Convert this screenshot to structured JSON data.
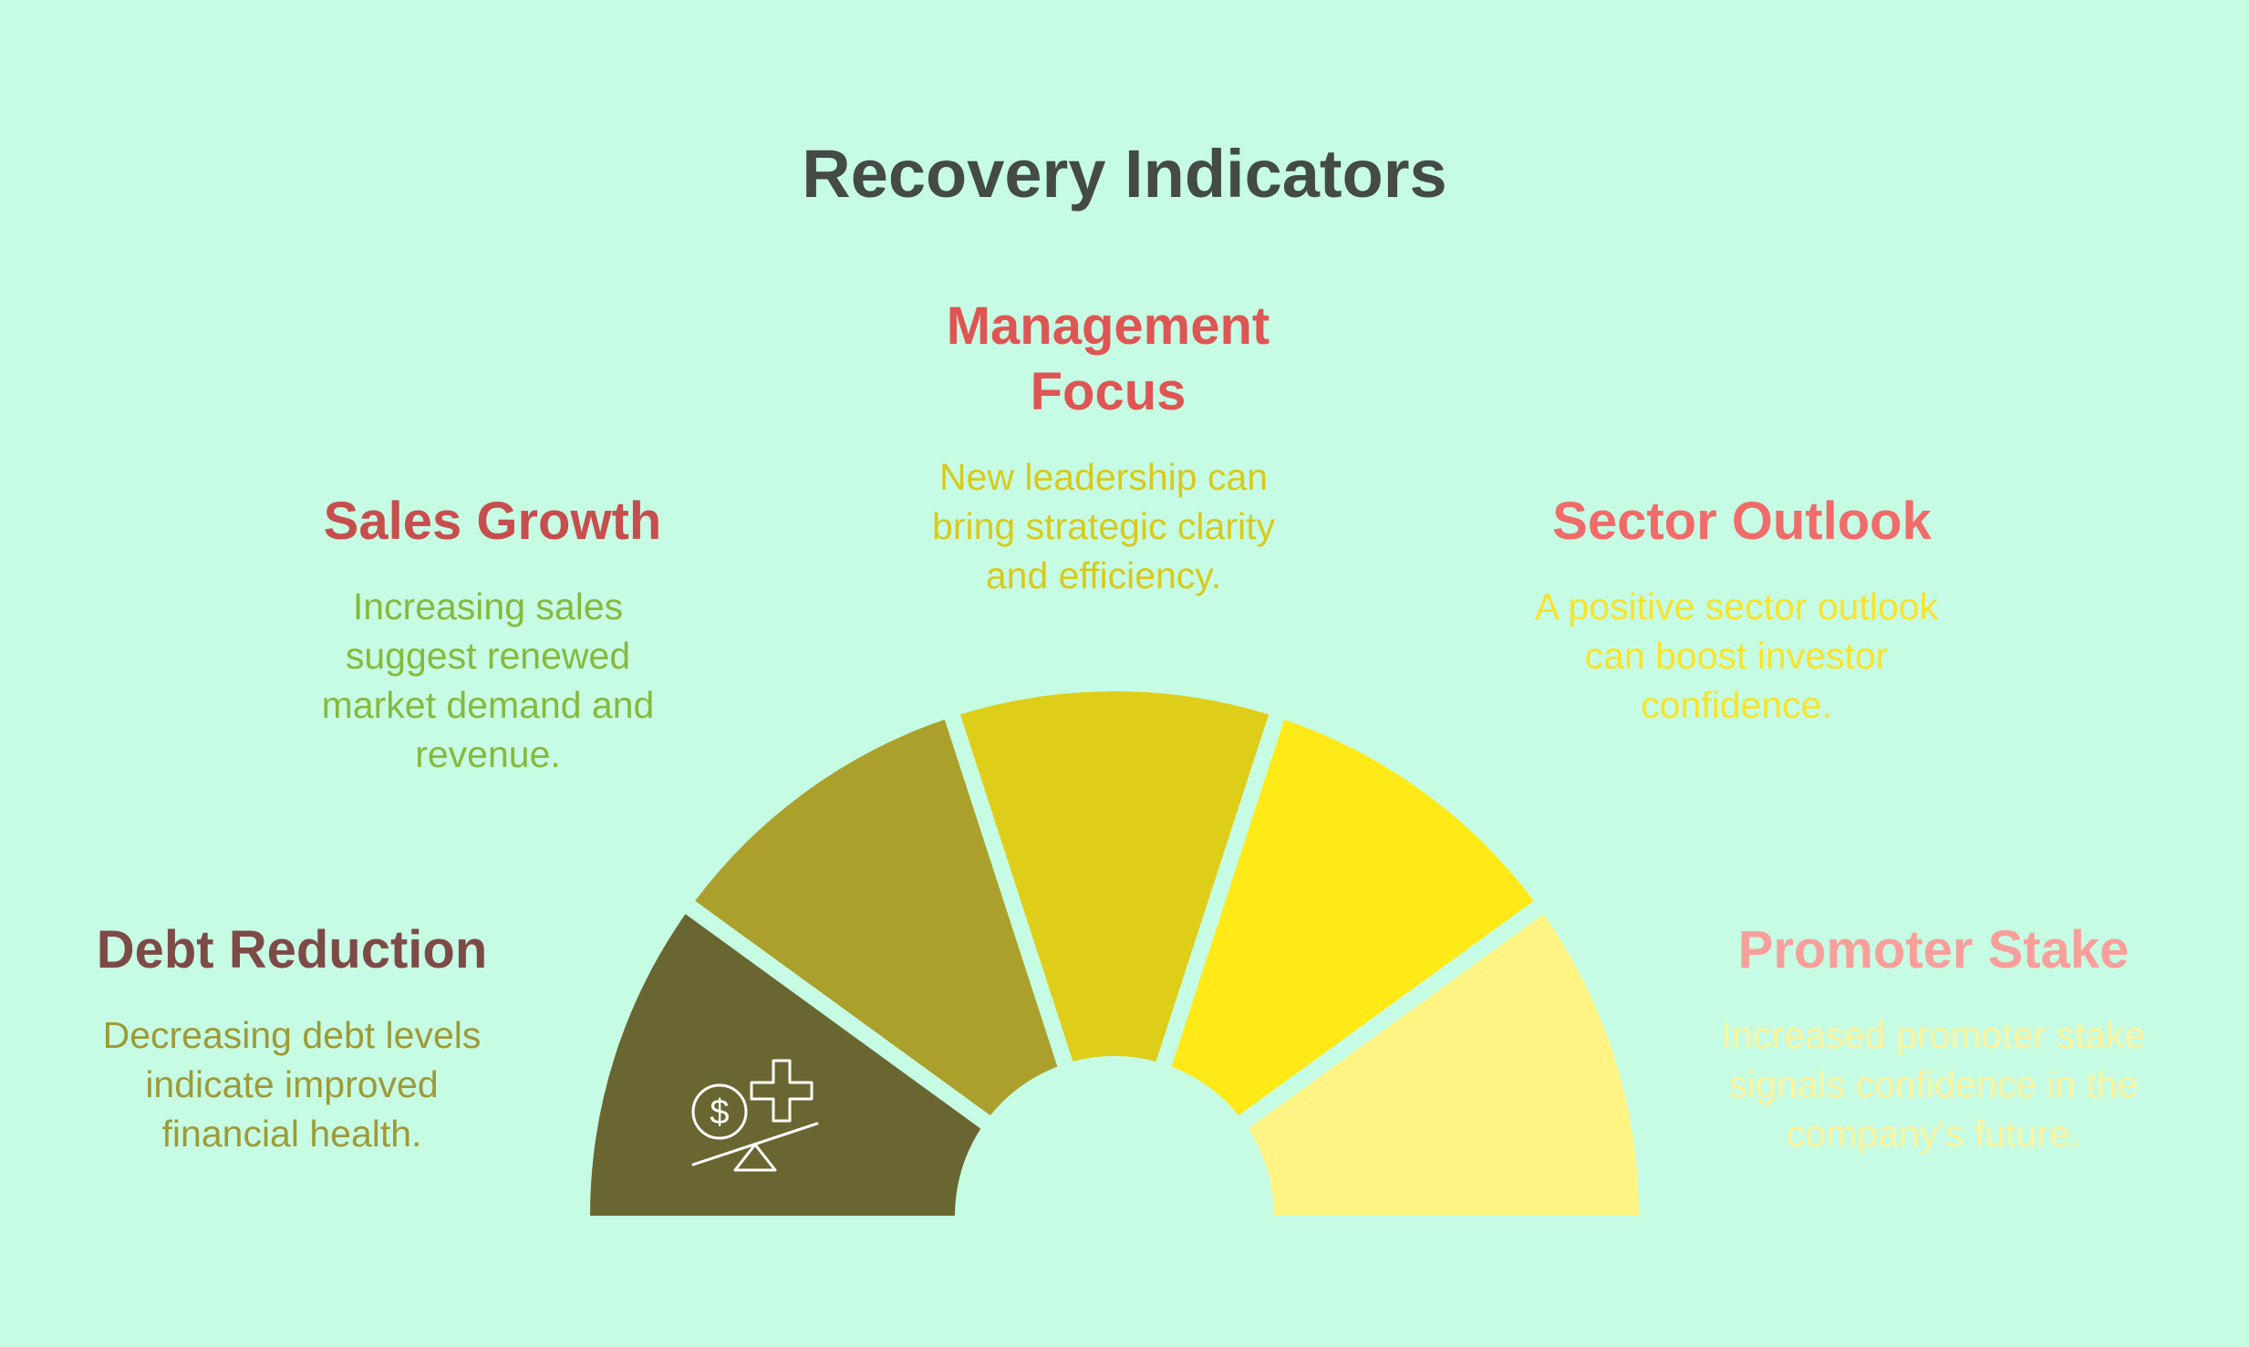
{
  "title": "Recovery Indicators",
  "segments": [
    {
      "key": "debt",
      "heading": "Debt Reduction",
      "description": "Decreasing debt levels indicate improved financial health.",
      "fill": "#6a6632",
      "heading_color": "#7e4a47",
      "text_color": "#9e9a37",
      "icon": "scale-dollar-plus-icon"
    },
    {
      "key": "sales",
      "heading": "Sales Growth",
      "description": "Increasing sales suggest renewed market demand and revenue.",
      "fill": "#aba02c",
      "heading_color": "#c74e4e",
      "text_color": "#86b93c"
    },
    {
      "key": "management",
      "heading": "Management Focus",
      "description": "New leadership can bring strategic clarity and efficiency.",
      "fill": "#dece19",
      "heading_color": "#de5554",
      "text_color": "#d8ca1c"
    },
    {
      "key": "sector",
      "heading": "Sector Outlook",
      "description": "A positive sector outlook can boost investor confidence.",
      "fill": "#ffe916",
      "heading_color": "#f06b69",
      "text_color": "#f8e32a"
    },
    {
      "key": "promoter",
      "heading": "Promoter Stake",
      "description": "Increased promoter stake signals confidence in the company's future.",
      "fill": "#fff483",
      "heading_color": "#f89f9c",
      "text_color": "#fdf39c"
    }
  ]
}
